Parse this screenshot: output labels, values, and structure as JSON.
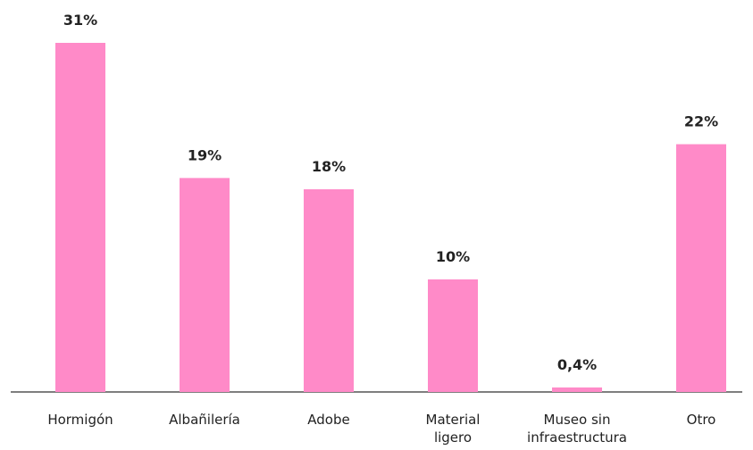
{
  "chart_data": {
    "type": "bar",
    "categories": [
      [
        "Hormigón"
      ],
      [
        "Albañilería"
      ],
      [
        "Adobe"
      ],
      [
        "Material",
        "ligero"
      ],
      [
        "Museo sin",
        "infraestructura"
      ],
      [
        "Otro"
      ]
    ],
    "values": [
      31,
      19,
      18,
      10,
      0.4,
      22
    ],
    "value_labels": [
      "31%",
      "19%",
      "18%",
      "10%",
      "0,4%",
      "22%"
    ],
    "title": "",
    "xlabel": "",
    "ylabel": "",
    "ylim": [
      0,
      31
    ],
    "grid": false,
    "legend": "none",
    "colors": {
      "bar": "#FF8AC8",
      "axis": "#333333",
      "text": "#222222"
    }
  }
}
